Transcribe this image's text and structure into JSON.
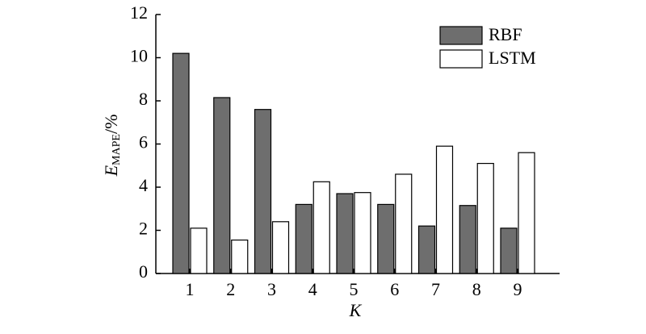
{
  "chart_data": {
    "type": "bar",
    "y_label": {
      "main": "E",
      "sub": "MAPE",
      "suffix": "/%"
    },
    "x_label": "K",
    "categories": [
      "1",
      "2",
      "3",
      "4",
      "5",
      "6",
      "7",
      "8",
      "9"
    ],
    "series": [
      {
        "name": "RBF",
        "color": "#6e6e6e",
        "values": [
          10.2,
          8.15,
          7.6,
          3.2,
          3.7,
          3.2,
          2.2,
          3.15,
          2.1
        ]
      },
      {
        "name": "LSTM",
        "color": "#ffffff",
        "values": [
          2.1,
          1.55,
          2.4,
          4.25,
          3.75,
          4.6,
          5.9,
          5.1,
          5.6
        ]
      }
    ],
    "ylim": [
      0,
      12
    ],
    "yticks": [
      0,
      2,
      4,
      6,
      8,
      10,
      12
    ],
    "legend": "upper-right"
  }
}
